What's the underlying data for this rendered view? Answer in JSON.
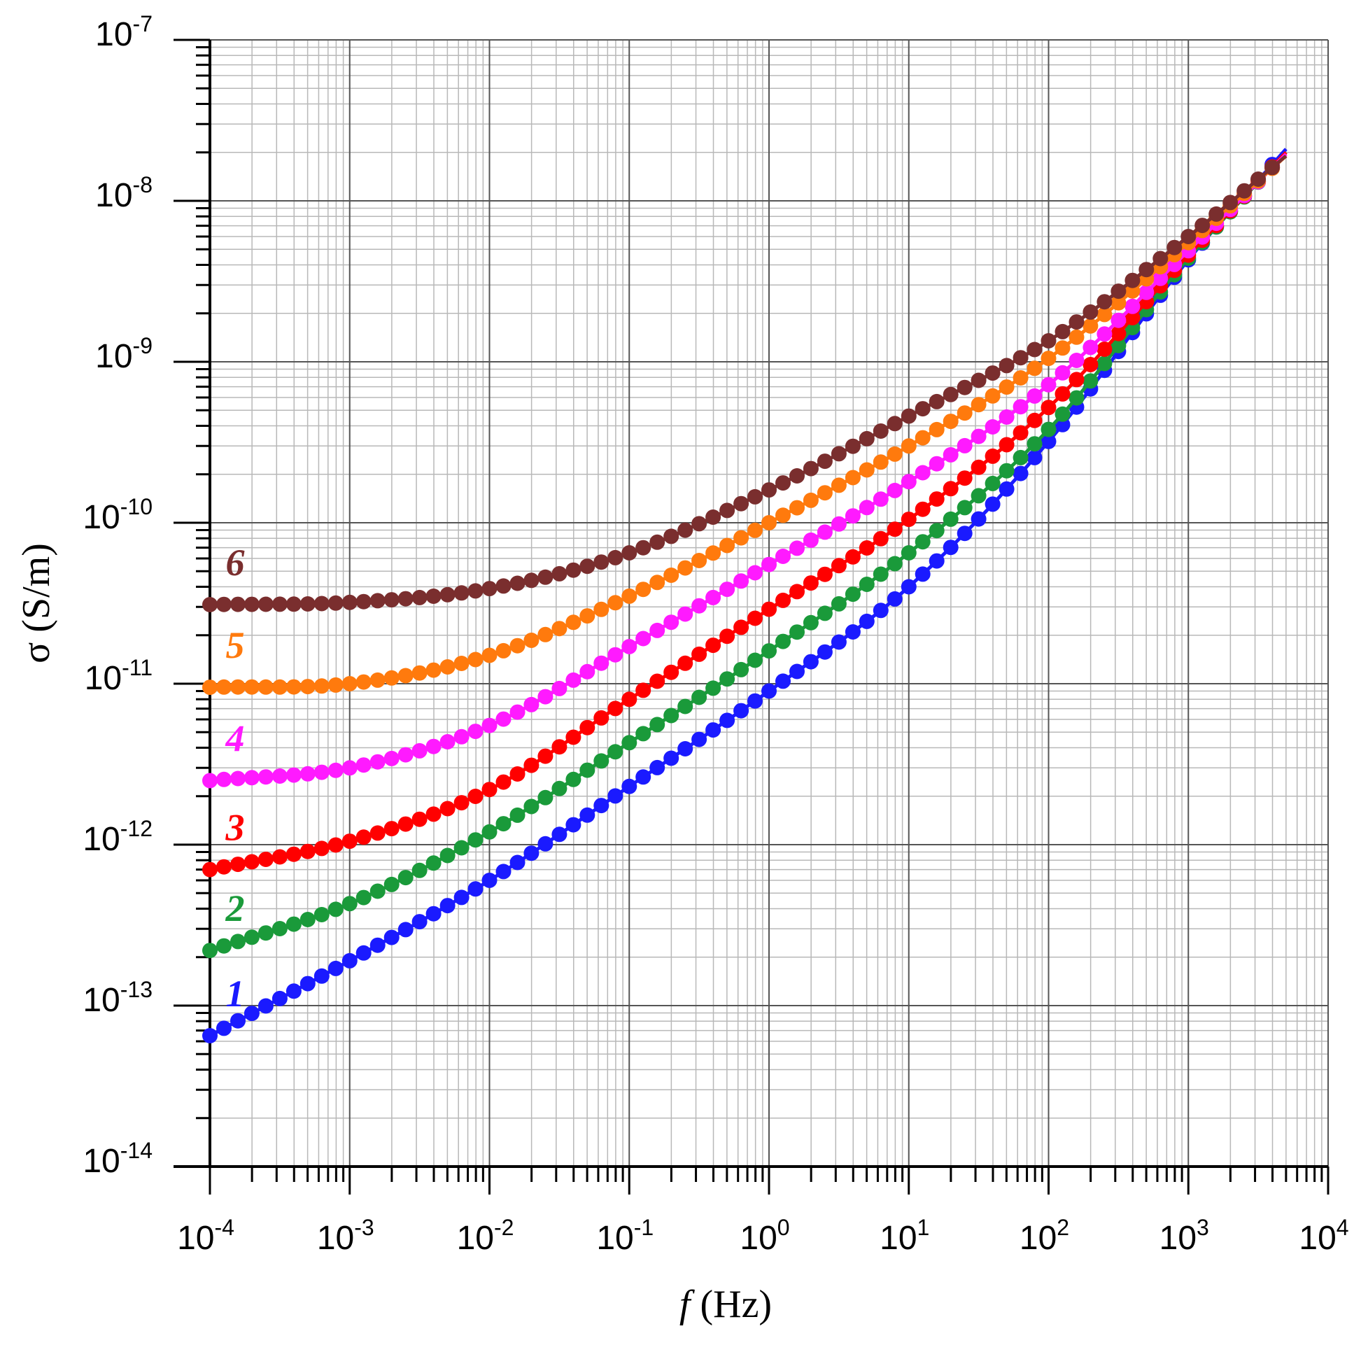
{
  "chart_data": {
    "type": "scatter",
    "title": "",
    "xlabel": {
      "italic": "f",
      "rest": " (Hz)"
    },
    "ylabel": "σ (S/m)",
    "x_scale": "log",
    "y_scale": "log",
    "xlim": [
      0.0001,
      10000
    ],
    "ylim": [
      1e-14,
      1e-07
    ],
    "grid": true,
    "x_ticks": [
      {
        "value": 0.0001,
        "base": "10",
        "exp": "-4"
      },
      {
        "value": 0.001,
        "base": "10",
        "exp": "-3"
      },
      {
        "value": 0.01,
        "base": "10",
        "exp": "-2"
      },
      {
        "value": 0.1,
        "base": "10",
        "exp": "-1"
      },
      {
        "value": 1,
        "base": "10",
        "exp": "0"
      },
      {
        "value": 10,
        "base": "10",
        "exp": "1"
      },
      {
        "value": 100,
        "base": "10",
        "exp": "2"
      },
      {
        "value": 1000,
        "base": "10",
        "exp": "3"
      },
      {
        "value": 10000,
        "base": "10",
        "exp": "4"
      }
    ],
    "y_ticks": [
      {
        "value": 1e-14,
        "base": "10",
        "exp": "-14"
      },
      {
        "value": 1e-13,
        "base": "10",
        "exp": "-13"
      },
      {
        "value": 1e-12,
        "base": "10",
        "exp": "-12"
      },
      {
        "value": 1e-11,
        "base": "10",
        "exp": "-11"
      },
      {
        "value": 1e-10,
        "base": "10",
        "exp": "-10"
      },
      {
        "value": 1e-09,
        "base": "10",
        "exp": "-9"
      },
      {
        "value": 1e-08,
        "base": "10",
        "exp": "-8"
      },
      {
        "value": 1e-07,
        "base": "10",
        "exp": "-7"
      }
    ],
    "x": [
      0.0001,
      0.001,
      0.01,
      0.1,
      1,
      10,
      100,
      1000,
      5000
    ],
    "series": [
      {
        "name": "1",
        "color": "#1a1aff",
        "values": [
          6.5e-14,
          1.9e-13,
          6e-13,
          2.3e-12,
          9e-12,
          4e-11,
          3.2e-10,
          4.3e-09,
          2.1e-08
        ]
      },
      {
        "name": "2",
        "color": "#1a9a3a",
        "values": [
          2.2e-13,
          4.3e-13,
          1.2e-12,
          4.3e-12,
          1.6e-11,
          6.5e-11,
          3.8e-10,
          4.4e-09,
          2e-08
        ]
      },
      {
        "name": "3",
        "color": "#ff0000",
        "values": [
          7e-13,
          1.05e-12,
          2.2e-12,
          8e-12,
          2.9e-11,
          1.05e-10,
          5.2e-10,
          4.6e-09,
          2e-08
        ]
      },
      {
        "name": "4",
        "color": "#ff1aff",
        "values": [
          2.5e-12,
          3e-12,
          5.5e-12,
          1.7e-11,
          5.5e-11,
          1.8e-10,
          7.2e-10,
          4.9e-09,
          1.95e-08
        ]
      },
      {
        "name": "5",
        "color": "#ff7a0d",
        "values": [
          9.5e-12,
          1e-11,
          1.5e-11,
          3.5e-11,
          1e-10,
          3e-10,
          1.05e-09,
          5.5e-09,
          1.9e-08
        ]
      },
      {
        "name": "6",
        "color": "#7a2e2e",
        "values": [
          3.1e-11,
          3.2e-11,
          3.9e-11,
          6.5e-11,
          1.6e-10,
          4.6e-10,
          1.35e-09,
          6e-09,
          1.9e-08
        ]
      }
    ]
  }
}
